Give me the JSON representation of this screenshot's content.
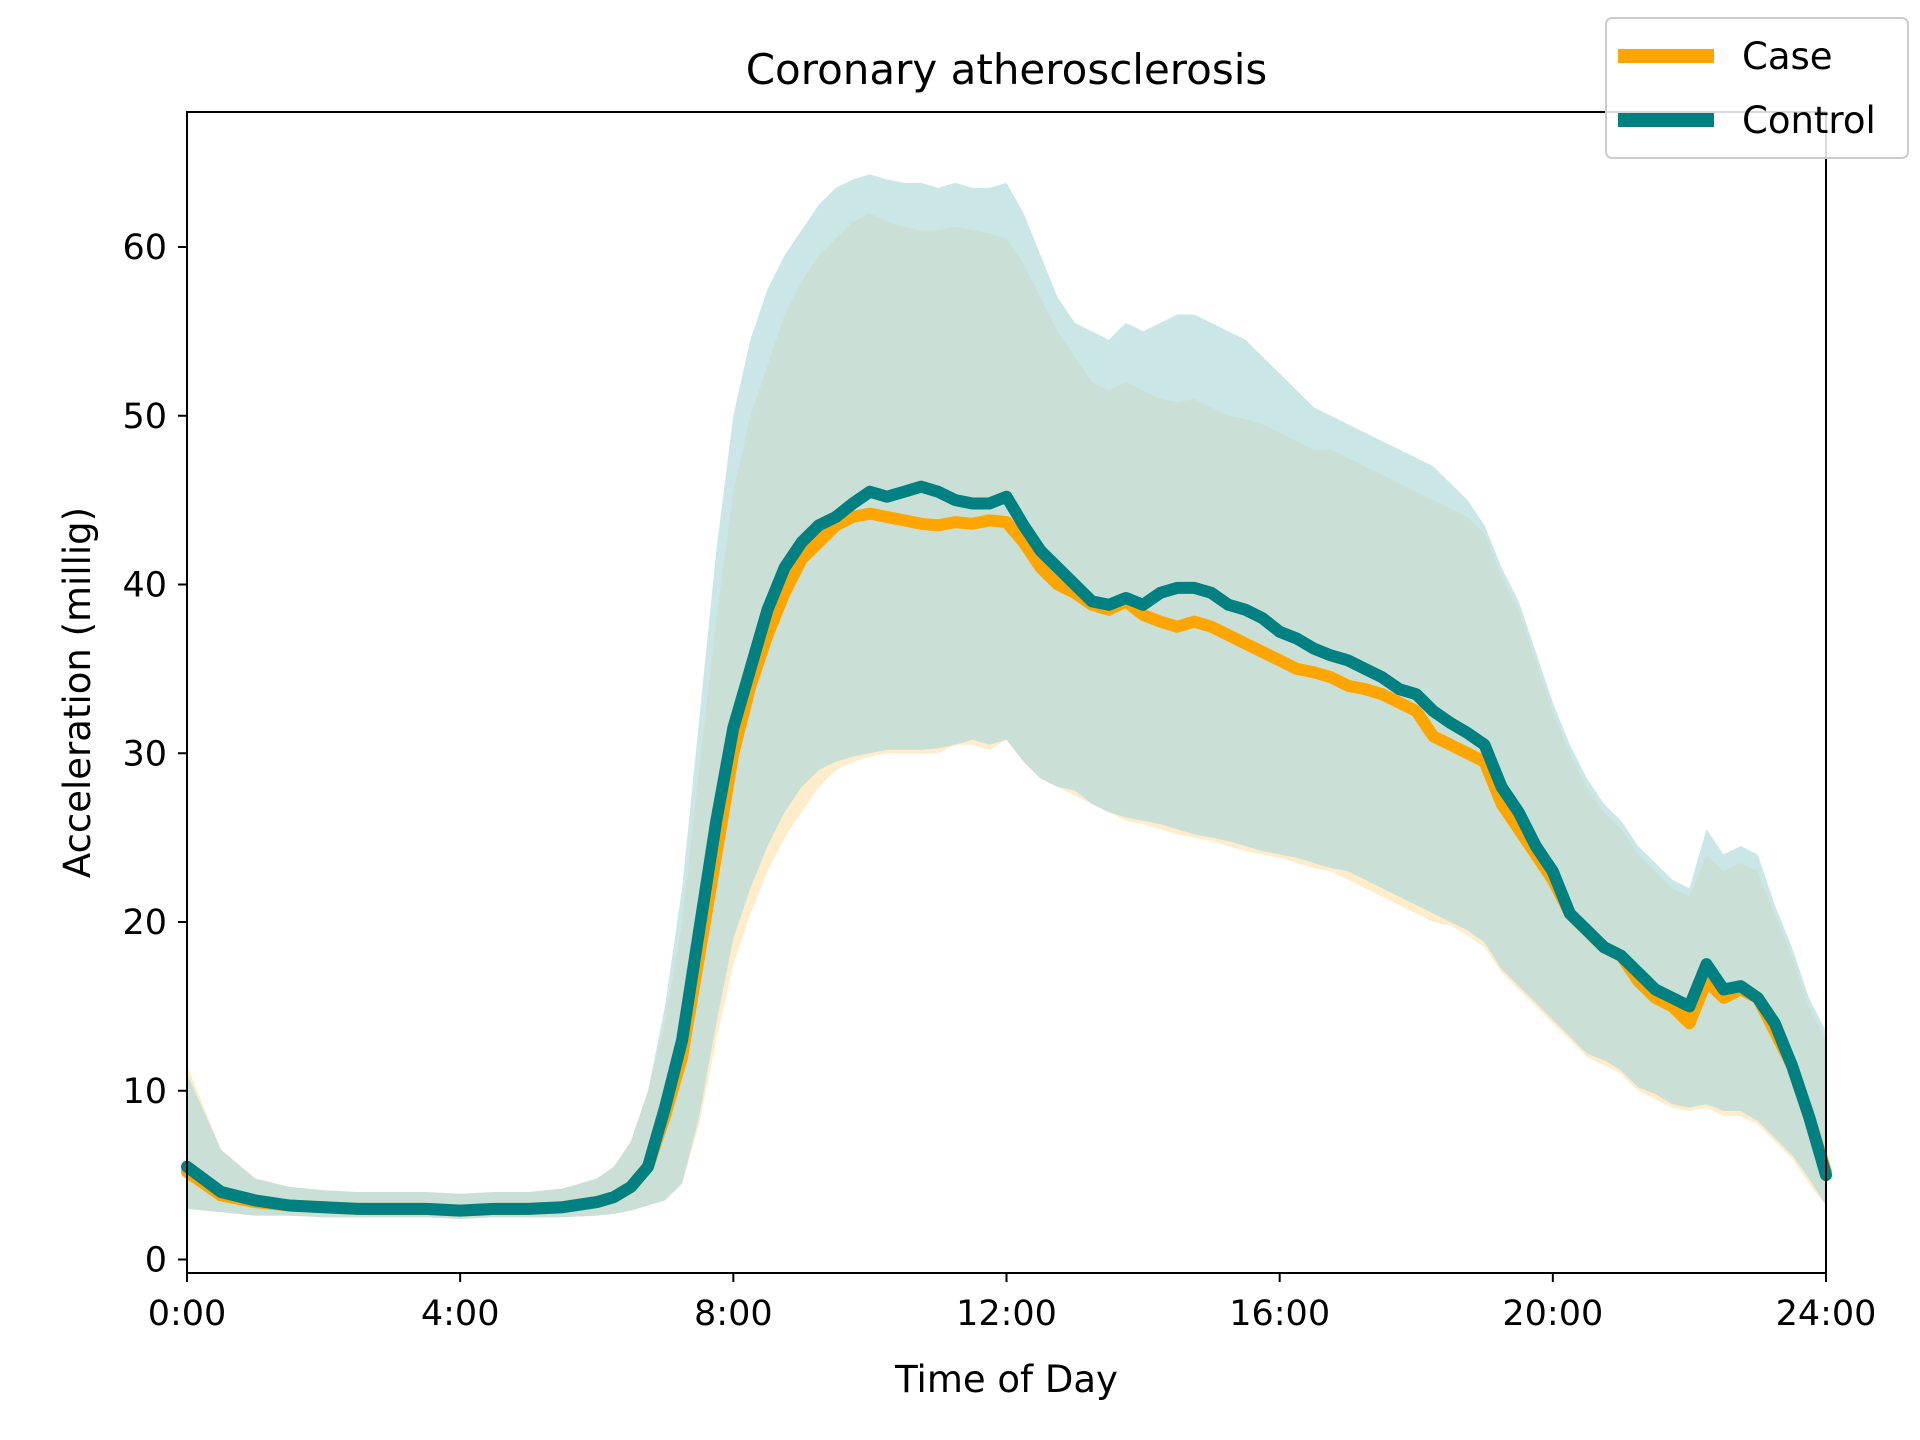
{
  "chart_data": {
    "type": "area",
    "title": "Coronary atherosclerosis",
    "xlabel": "Time of Day",
    "ylabel": "Acceleration (millig)",
    "xlim": [
      0,
      24
    ],
    "ylim": [
      -0.8,
      68
    ],
    "x_ticks": [
      {
        "value": 0,
        "label": "0:00"
      },
      {
        "value": 4,
        "label": "4:00"
      },
      {
        "value": 8,
        "label": "8:00"
      },
      {
        "value": 12,
        "label": "12:00"
      },
      {
        "value": 16,
        "label": "16:00"
      },
      {
        "value": 20,
        "label": "20:00"
      },
      {
        "value": 24,
        "label": "24:00"
      }
    ],
    "y_ticks": [
      {
        "value": 0,
        "label": "0"
      },
      {
        "value": 10,
        "label": "10"
      },
      {
        "value": 20,
        "label": "20"
      },
      {
        "value": 30,
        "label": "30"
      },
      {
        "value": 40,
        "label": "40"
      },
      {
        "value": 50,
        "label": "50"
      },
      {
        "value": 60,
        "label": "60"
      }
    ],
    "grid": false,
    "legend_position": "top-right",
    "x": [
      0,
      0.5,
      1,
      1.5,
      2,
      2.5,
      3,
      3.5,
      4,
      4.5,
      5,
      5.5,
      6,
      6.25,
      6.5,
      6.75,
      7,
      7.25,
      7.5,
      7.75,
      8,
      8.25,
      8.5,
      8.75,
      9,
      9.25,
      9.5,
      9.75,
      10,
      10.25,
      10.5,
      10.75,
      11,
      11.25,
      11.5,
      11.75,
      12,
      12.25,
      12.5,
      12.75,
      13,
      13.25,
      13.5,
      13.75,
      14,
      14.25,
      14.5,
      14.75,
      15,
      15.25,
      15.5,
      15.75,
      16,
      16.25,
      16.5,
      16.75,
      17,
      17.25,
      17.5,
      17.75,
      18,
      18.25,
      18.5,
      18.75,
      19,
      19.25,
      19.5,
      19.75,
      20,
      20.25,
      20.5,
      20.75,
      21,
      21.25,
      21.5,
      21.75,
      22,
      22.25,
      22.5,
      22.75,
      23,
      23.25,
      23.5,
      23.75,
      24
    ],
    "series": [
      {
        "name": "Case",
        "color": "#FFA500",
        "band_color": "#FFE4B3",
        "mean": [
          5.2,
          3.8,
          3.4,
          3.2,
          3.1,
          3.0,
          3.0,
          3.0,
          2.9,
          3.0,
          3.0,
          3.1,
          3.4,
          3.7,
          4.3,
          5.5,
          8.5,
          12.0,
          18.0,
          24.0,
          30.0,
          34.0,
          37.0,
          39.5,
          41.5,
          42.5,
          43.5,
          44.0,
          44.2,
          44.0,
          43.8,
          43.6,
          43.5,
          43.7,
          43.6,
          43.8,
          43.7,
          42.5,
          41.0,
          40.0,
          39.5,
          38.8,
          38.5,
          39.0,
          38.2,
          37.8,
          37.5,
          37.8,
          37.5,
          37.0,
          36.5,
          36.0,
          35.5,
          35.0,
          34.8,
          34.5,
          34.0,
          33.8,
          33.5,
          33.0,
          32.5,
          31.0,
          30.5,
          30.0,
          29.5,
          27.0,
          25.5,
          24.0,
          22.5,
          20.5,
          19.5,
          18.5,
          18.0,
          16.5,
          15.5,
          15.0,
          14.0,
          16.5,
          15.5,
          16.0,
          15.5,
          13.5,
          11.5,
          8.5,
          5.2
        ],
        "lower": [
          3.0,
          2.8,
          2.6,
          2.6,
          2.5,
          2.5,
          2.5,
          2.5,
          2.4,
          2.5,
          2.5,
          2.5,
          2.6,
          2.7,
          2.9,
          3.2,
          3.5,
          4.5,
          8.0,
          13.0,
          17.5,
          20.5,
          23.0,
          25.0,
          26.5,
          28.0,
          29.0,
          29.5,
          29.8,
          30.0,
          30.0,
          30.0,
          30.0,
          30.5,
          30.5,
          30.2,
          30.8,
          29.5,
          28.5,
          28.0,
          27.5,
          27.0,
          26.5,
          26.0,
          25.8,
          25.5,
          25.2,
          25.0,
          24.8,
          24.5,
          24.2,
          24.0,
          23.8,
          23.5,
          23.2,
          23.0,
          22.5,
          22.0,
          21.5,
          21.0,
          20.5,
          20.0,
          19.8,
          19.2,
          18.5,
          17.0,
          16.0,
          15.0,
          14.0,
          13.0,
          12.0,
          11.5,
          11.0,
          10.0,
          9.5,
          9.0,
          8.8,
          9.0,
          8.5,
          8.5,
          8.0,
          7.0,
          6.0,
          4.5,
          3.2
        ],
        "upper": [
          11.5,
          6.5,
          4.8,
          4.3,
          4.1,
          4.0,
          4.0,
          4.0,
          3.9,
          4.0,
          4.0,
          4.2,
          4.8,
          5.5,
          7.0,
          10.0,
          14.0,
          20.0,
          29.0,
          38.0,
          45.5,
          50.0,
          53.0,
          56.0,
          58.0,
          59.5,
          60.5,
          61.5,
          62.0,
          61.5,
          61.2,
          61.0,
          61.0,
          61.2,
          61.0,
          60.8,
          60.5,
          59.0,
          57.0,
          55.0,
          53.5,
          52.0,
          51.5,
          52.0,
          51.5,
          51.0,
          50.8,
          51.0,
          50.5,
          50.0,
          49.8,
          49.5,
          49.0,
          48.5,
          48.0,
          48.0,
          47.5,
          47.0,
          46.5,
          46.0,
          45.5,
          45.0,
          44.5,
          44.0,
          43.0,
          40.5,
          38.5,
          35.5,
          32.5,
          30.0,
          28.0,
          26.5,
          25.5,
          24.0,
          23.0,
          22.0,
          21.5,
          24.0,
          23.0,
          23.5,
          23.0,
          20.5,
          18.0,
          15.0,
          13.0
        ]
      },
      {
        "name": "Control",
        "color": "#008080",
        "band_color": "#B3DCDC",
        "mean": [
          5.5,
          4.0,
          3.5,
          3.2,
          3.1,
          3.0,
          3.0,
          3.0,
          2.9,
          3.0,
          3.0,
          3.1,
          3.4,
          3.7,
          4.3,
          5.5,
          9.0,
          13.0,
          19.5,
          26.0,
          31.5,
          35.0,
          38.5,
          41.0,
          42.5,
          43.5,
          44.0,
          44.8,
          45.5,
          45.2,
          45.5,
          45.8,
          45.5,
          45.0,
          44.8,
          44.8,
          45.2,
          43.5,
          42.0,
          41.0,
          40.0,
          39.0,
          38.8,
          39.2,
          38.8,
          39.5,
          39.8,
          39.8,
          39.5,
          38.8,
          38.5,
          38.0,
          37.2,
          36.8,
          36.2,
          35.8,
          35.5,
          35.0,
          34.5,
          33.8,
          33.5,
          32.5,
          31.8,
          31.2,
          30.5,
          28.0,
          26.5,
          24.5,
          23.0,
          20.5,
          19.5,
          18.5,
          18.0,
          17.0,
          16.0,
          15.5,
          15.0,
          17.5,
          16.0,
          16.2,
          15.5,
          14.0,
          11.5,
          8.5,
          5.0
        ],
        "lower": [
          3.0,
          2.8,
          2.6,
          2.6,
          2.5,
          2.5,
          2.5,
          2.5,
          2.4,
          2.5,
          2.5,
          2.5,
          2.6,
          2.7,
          2.9,
          3.2,
          3.5,
          4.5,
          8.5,
          14.0,
          19.0,
          22.0,
          24.5,
          26.5,
          28.0,
          29.0,
          29.5,
          29.8,
          30.0,
          30.2,
          30.2,
          30.2,
          30.3,
          30.5,
          30.8,
          30.5,
          30.8,
          29.5,
          28.5,
          28.0,
          27.8,
          27.0,
          26.5,
          26.2,
          26.0,
          25.8,
          25.5,
          25.2,
          25.0,
          24.8,
          24.5,
          24.2,
          24.0,
          23.8,
          23.5,
          23.2,
          23.0,
          22.5,
          22.0,
          21.5,
          21.0,
          20.5,
          20.0,
          19.5,
          18.8,
          17.2,
          16.2,
          15.2,
          14.2,
          13.2,
          12.2,
          11.8,
          11.2,
          10.2,
          9.8,
          9.2,
          9.0,
          9.2,
          8.8,
          8.8,
          8.2,
          7.2,
          6.2,
          4.8,
          3.2
        ],
        "upper": [
          11.0,
          6.5,
          4.8,
          4.3,
          4.1,
          4.0,
          4.0,
          4.0,
          3.9,
          4.0,
          4.0,
          4.2,
          4.8,
          5.5,
          7.0,
          10.0,
          15.0,
          22.0,
          32.0,
          42.0,
          50.0,
          54.5,
          57.5,
          59.5,
          61.0,
          62.5,
          63.5,
          64.0,
          64.3,
          64.0,
          63.8,
          63.8,
          63.5,
          63.8,
          63.5,
          63.5,
          63.8,
          62.0,
          59.5,
          57.0,
          55.5,
          55.0,
          54.5,
          55.5,
          55.0,
          55.5,
          56.0,
          56.0,
          55.5,
          55.0,
          54.5,
          53.5,
          52.5,
          51.5,
          50.5,
          50.0,
          49.5,
          49.0,
          48.5,
          48.0,
          47.5,
          47.0,
          46.0,
          45.0,
          43.5,
          41.0,
          39.0,
          36.0,
          33.0,
          30.5,
          28.5,
          27.0,
          26.0,
          24.5,
          23.5,
          22.5,
          22.0,
          25.5,
          24.0,
          24.5,
          24.0,
          21.0,
          18.5,
          15.5,
          13.5
        ]
      }
    ]
  }
}
